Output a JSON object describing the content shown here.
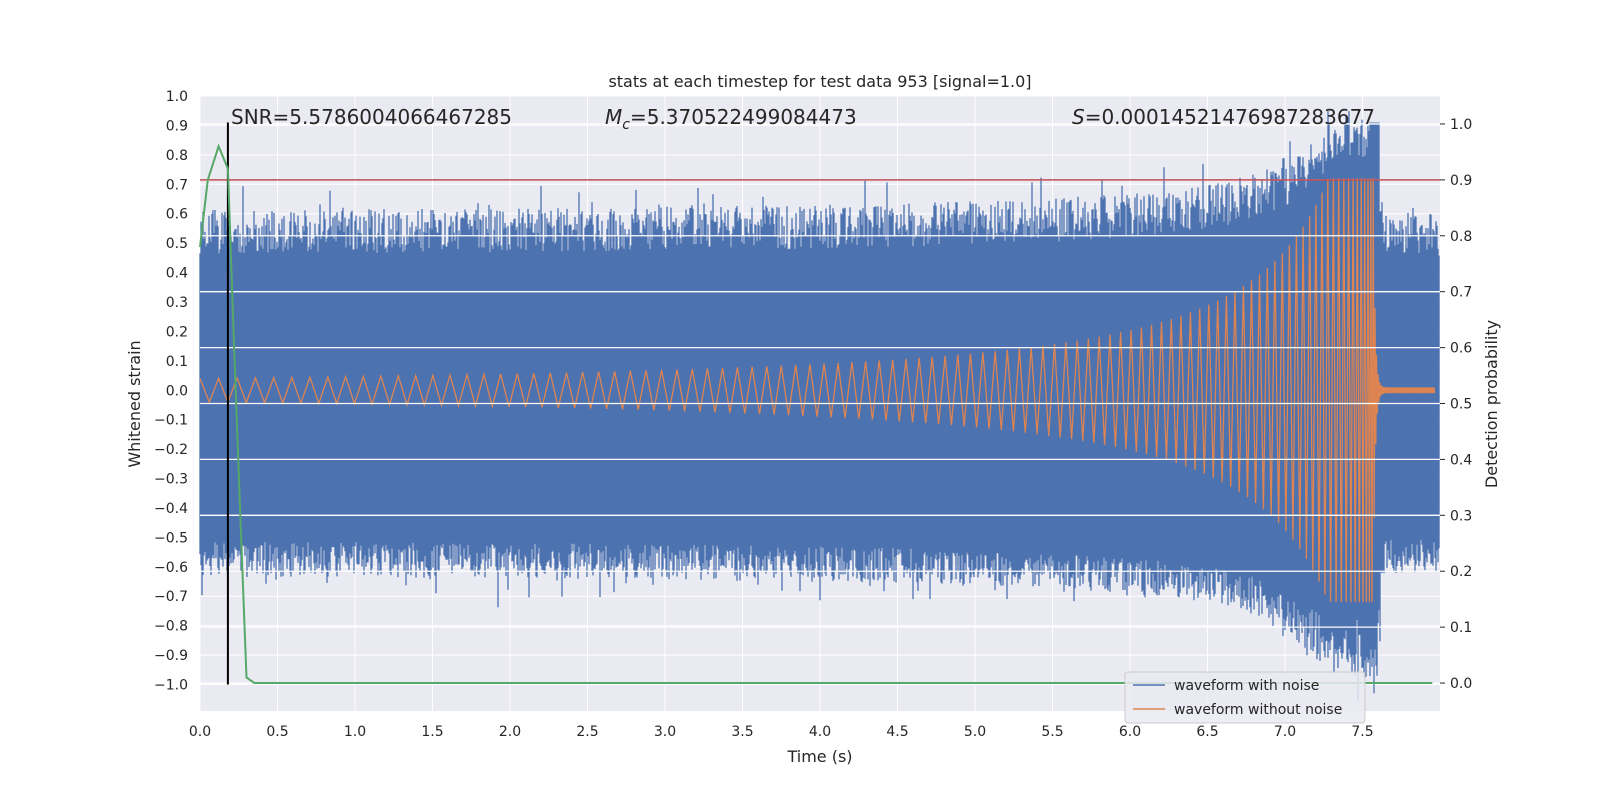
{
  "chart_data": {
    "type": "line",
    "title": "stats at each timestep for test data 953 [signal=1.0]",
    "xlabel": "Time (s)",
    "ylabel": "Whitened strain",
    "y2label": "Detection probability",
    "xlim": [
      0.0,
      8.0
    ],
    "ylim": [
      -1.09,
      1.0
    ],
    "y2lim": [
      -0.05,
      1.05
    ],
    "xticks": [
      0.0,
      0.5,
      1.0,
      1.5,
      2.0,
      2.5,
      3.0,
      3.5,
      4.0,
      4.5,
      5.0,
      5.5,
      6.0,
      6.5,
      7.0,
      7.5
    ],
    "xtick_labels": [
      "0.0",
      "0.5",
      "1.0",
      "1.5",
      "2.0",
      "2.5",
      "3.0",
      "3.5",
      "4.0",
      "4.5",
      "5.0",
      "5.5",
      "6.0",
      "6.5",
      "7.0",
      "7.5"
    ],
    "yticks": [
      1.0,
      0.9,
      0.8,
      0.7,
      0.6,
      0.5,
      0.4,
      0.3,
      0.2,
      0.1,
      0.0,
      -0.1,
      -0.2,
      -0.3,
      -0.4,
      -0.5,
      -0.6,
      -0.7,
      -0.8,
      -0.9,
      -1.0
    ],
    "ytick_labels": [
      "1.0",
      "0.9",
      "0.8",
      "0.7",
      "0.6",
      "0.5",
      "0.4",
      "0.3",
      "0.2",
      "0.1",
      "0.0",
      "−0.1",
      "−0.2",
      "−0.3",
      "−0.4",
      "−0.5",
      "−0.6",
      "−0.7",
      "−0.8",
      "−0.9",
      "−1.0"
    ],
    "y2ticks": [
      1.0,
      0.9,
      0.8,
      0.7,
      0.6,
      0.5,
      0.4,
      0.3,
      0.2,
      0.1,
      0.0
    ],
    "y2tick_labels": [
      "1.0",
      "0.9",
      "0.8",
      "0.7",
      "0.6",
      "0.5",
      "0.4",
      "0.3",
      "0.2",
      "0.1",
      "0.0"
    ],
    "grid": true,
    "legend_position": "lower-right",
    "series": [
      {
        "name": "waveform with noise",
        "color": "#4c72b0",
        "axis": "left",
        "envelope_base": 0.55,
        "peak_time": 7.55,
        "peak_value": 0.91
      },
      {
        "name": "waveform without noise",
        "color": "#dd8452",
        "axis": "left",
        "chirp_start_amplitude": 0.04,
        "merger_time": 7.57,
        "merger_amplitude": 0.72,
        "post_merger_amplitude": 0.01
      },
      {
        "name": "detection probability",
        "color": "#55a868",
        "axis": "right",
        "x": [
          0.0,
          0.05,
          0.12,
          0.18,
          0.22,
          0.26,
          0.3,
          0.35,
          0.4,
          7.95
        ],
        "y": [
          0.78,
          0.9,
          0.96,
          0.92,
          0.6,
          0.3,
          0.01,
          0.0,
          0.0,
          0.0
        ]
      }
    ],
    "hlines": [
      {
        "axis": "right",
        "value": 0.9,
        "color": "#c44e52"
      }
    ],
    "vlines": [
      {
        "x": 0.18,
        "color": "#000000",
        "y_from": -1.0,
        "y_to": 0.91
      }
    ],
    "annotations": {
      "snr": "SNR=5.5786004066467285",
      "mc_symbol": "M",
      "mc_subscript": "c",
      "mc_value": "=5.370522499084473",
      "s_symbol": "S",
      "s_value": "=0.0001452147698728367​7"
    }
  },
  "legend": {
    "items": [
      "waveform with noise",
      "waveform without noise"
    ]
  }
}
